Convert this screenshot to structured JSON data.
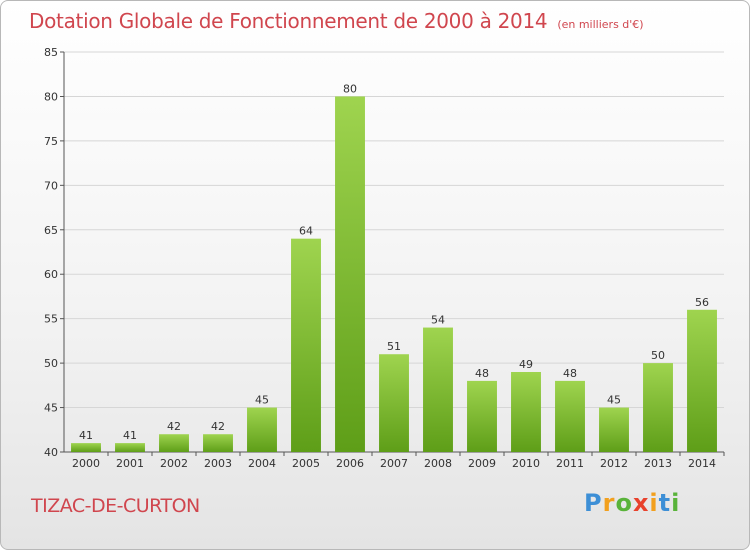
{
  "chart_data": {
    "type": "bar",
    "title": "Dotation Globale de Fonctionnement de 2000 à 2014",
    "subtitle": "(en milliers d'€)",
    "categories": [
      "2000",
      "2001",
      "2002",
      "2003",
      "2004",
      "2005",
      "2006",
      "2007",
      "2008",
      "2009",
      "2010",
      "2011",
      "2012",
      "2013",
      "2014"
    ],
    "values": [
      41,
      41,
      42,
      42,
      45,
      64,
      80,
      51,
      54,
      48,
      49,
      48,
      45,
      50,
      56
    ],
    "ylim": [
      40,
      85
    ],
    "yticks": [
      40,
      45,
      50,
      55,
      60,
      65,
      70,
      75,
      80,
      85
    ],
    "grid": true,
    "colors": {
      "bar_light": "#9fd44f",
      "bar_dark": "#5e9e18",
      "grid": "#d6d6d6",
      "axis": "#555555"
    }
  },
  "commune": "TIZAC-DE-CURTON",
  "logo": {
    "letters": [
      "P",
      "r",
      "o",
      "x",
      "i",
      "t",
      "i"
    ],
    "colors": [
      "#3d8fd6",
      "#f2a01e",
      "#59b33a",
      "#e8412c",
      "#f2a01e",
      "#3d8fd6",
      "#59b33a"
    ]
  }
}
